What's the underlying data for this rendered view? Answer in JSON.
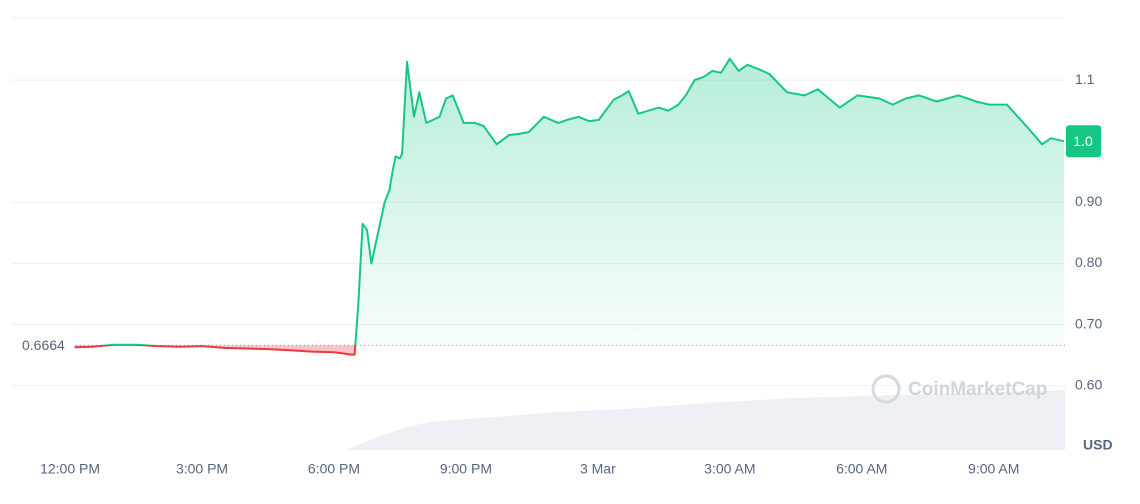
{
  "chart_data": {
    "type": "line",
    "x": [
      12.1,
      12.5,
      13,
      13.5,
      14,
      14.5,
      15,
      15.5,
      16,
      16.5,
      17,
      17.5,
      18,
      18.2,
      18.4,
      18.47,
      18.55,
      18.65,
      18.75,
      18.85,
      19.0,
      19.15,
      19.26,
      19.33,
      19.4,
      19.5,
      19.55,
      19.66,
      19.82,
      19.94,
      20.1,
      20.25,
      20.4,
      20.55,
      20.7,
      20.95,
      21.2,
      21.4,
      21.7,
      21.98,
      22.2,
      22.43,
      22.77,
      23.1,
      23.3,
      23.56,
      23.8,
      24.02,
      24.36,
      24.55,
      24.7,
      24.92,
      25.15,
      25.38,
      25.6,
      25.83,
      26.0,
      26.2,
      26.4,
      26.6,
      26.8,
      27.0,
      27.2,
      27.4,
      27.65,
      27.9,
      28.3,
      28.7,
      29.0,
      29.5,
      29.9,
      30.4,
      30.7,
      31.0,
      31.3,
      31.7,
      32.2,
      32.6,
      32.9,
      33.3,
      33.8,
      34.1,
      34.3,
      34.6
    ],
    "series": [
      {
        "name": "Price",
        "values": [
          0.663,
          0.664,
          0.667,
          0.667,
          0.665,
          0.664,
          0.665,
          0.662,
          0.661,
          0.66,
          0.658,
          0.656,
          0.655,
          0.653,
          0.651,
          0.651,
          0.73,
          0.865,
          0.855,
          0.8,
          0.85,
          0.9,
          0.92,
          0.95,
          0.975,
          0.972,
          0.98,
          1.13,
          1.04,
          1.08,
          1.03,
          1.035,
          1.04,
          1.07,
          1.075,
          1.03,
          1.03,
          1.025,
          0.995,
          1.01,
          1.012,
          1.015,
          1.04,
          1.03,
          1.035,
          1.04,
          1.033,
          1.035,
          1.068,
          1.075,
          1.082,
          1.045,
          1.05,
          1.055,
          1.05,
          1.06,
          1.075,
          1.1,
          1.105,
          1.115,
          1.112,
          1.135,
          1.115,
          1.125,
          1.118,
          1.11,
          1.08,
          1.075,
          1.085,
          1.055,
          1.075,
          1.07,
          1.06,
          1.07,
          1.075,
          1.065,
          1.075,
          1.065,
          1.06,
          1.06,
          1.02,
          0.995,
          1.005,
          1.0
        ]
      }
    ],
    "up_color": "#16c784",
    "down_color": "#ea3943",
    "reference_value": 0.6664,
    "last_price_label": "1.0",
    "currency": "USD",
    "watermark": "CoinMarketCap",
    "xlim": [
      10.68,
      34.62
    ],
    "xticks": [
      {
        "value": 12,
        "label": "12:00 PM"
      },
      {
        "value": 15,
        "label": "3:00 PM"
      },
      {
        "value": 18,
        "label": "6:00 PM"
      },
      {
        "value": 21,
        "label": "9:00 PM"
      },
      {
        "value": 24,
        "label": "3 Mar"
      },
      {
        "value": 27,
        "label": "3:00 AM"
      },
      {
        "value": 30,
        "label": "6:00 AM"
      },
      {
        "value": 33,
        "label": "9:00 AM"
      }
    ],
    "ylim": [
      0.495,
      1.2016
    ],
    "yticks": [
      1.1,
      {
        "value": 0.9,
        "label": "0.90"
      },
      {
        "value": 0.8,
        "label": "0.80"
      },
      {
        "value": 0.7,
        "label": "0.70"
      },
      {
        "value": 0.6,
        "label": "0.60"
      }
    ],
    "grid": true
  }
}
